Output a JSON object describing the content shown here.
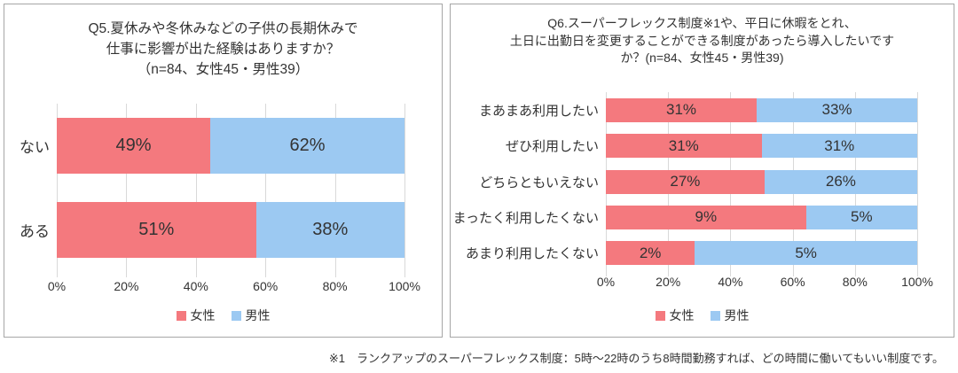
{
  "colors": {
    "female": "#f4797e",
    "male": "#9cc9f2",
    "gridline": "#d9d9d9",
    "panel_border": "#a6a6a6",
    "text": "#333333"
  },
  "chart_data": [
    {
      "type": "bar",
      "orientation": "horizontal",
      "stacked_100": true,
      "title": "Q5.夏休みや冬休みなどの子供の長期休みで仕事に影響が出た経験はありますか？（n=84、女性45・男性39）",
      "title_lines": [
        "Q5.夏休みや冬休みなどの子供の長期休みで",
        "仕事に影響が出た経験はありますか？",
        "（n=84、女性45・男性39）"
      ],
      "categories": [
        "ない",
        "ある"
      ],
      "series": [
        {
          "key": "female",
          "name": "女性",
          "color": "#f4797e",
          "values": [
            49,
            51
          ]
        },
        {
          "key": "male",
          "name": "男性",
          "color": "#9cc9f2",
          "values": [
            62,
            38
          ]
        }
      ],
      "value_suffix": "%",
      "x_ticks": [
        "0%",
        "20%",
        "40%",
        "60%",
        "80%",
        "100%"
      ],
      "xlim": [
        0,
        100
      ],
      "grid": true,
      "legend_position": "bottom"
    },
    {
      "type": "bar",
      "orientation": "horizontal",
      "stacked_100": true,
      "title": "Q6.スーパーフレックス制度※1や、平日に休暇をとれ、土日に出勤日を変更することができる制度があったら導入したいですか？(n=84、女性45・男性39)",
      "title_lines": [
        "Q6.スーパーフレックス制度※1や、平日に休暇をとれ、",
        "土日に出勤日を変更することができる制度があったら導入したいです",
        "か？(n=84、女性45・男性39)"
      ],
      "categories": [
        "まあまあ利用したい",
        "ぜひ利用したい",
        "どちらともいえない",
        "まったく利用したくない",
        "あまり利用したくない"
      ],
      "series": [
        {
          "key": "female",
          "name": "女性",
          "color": "#f4797e",
          "values": [
            31,
            31,
            27,
            9,
            2
          ]
        },
        {
          "key": "male",
          "name": "男性",
          "color": "#9cc9f2",
          "values": [
            33,
            31,
            26,
            5,
            5
          ]
        }
      ],
      "value_suffix": "%",
      "x_ticks": [
        "0%",
        "20%",
        "40%",
        "60%",
        "80%",
        "100%"
      ],
      "xlim": [
        0,
        100
      ],
      "grid": true,
      "legend_position": "bottom"
    }
  ],
  "footnote": "※1　ランクアップのスーパーフレックス制度：5時～22時のうち8時間勤務すれば、どの時間に働いてもいい制度です。"
}
